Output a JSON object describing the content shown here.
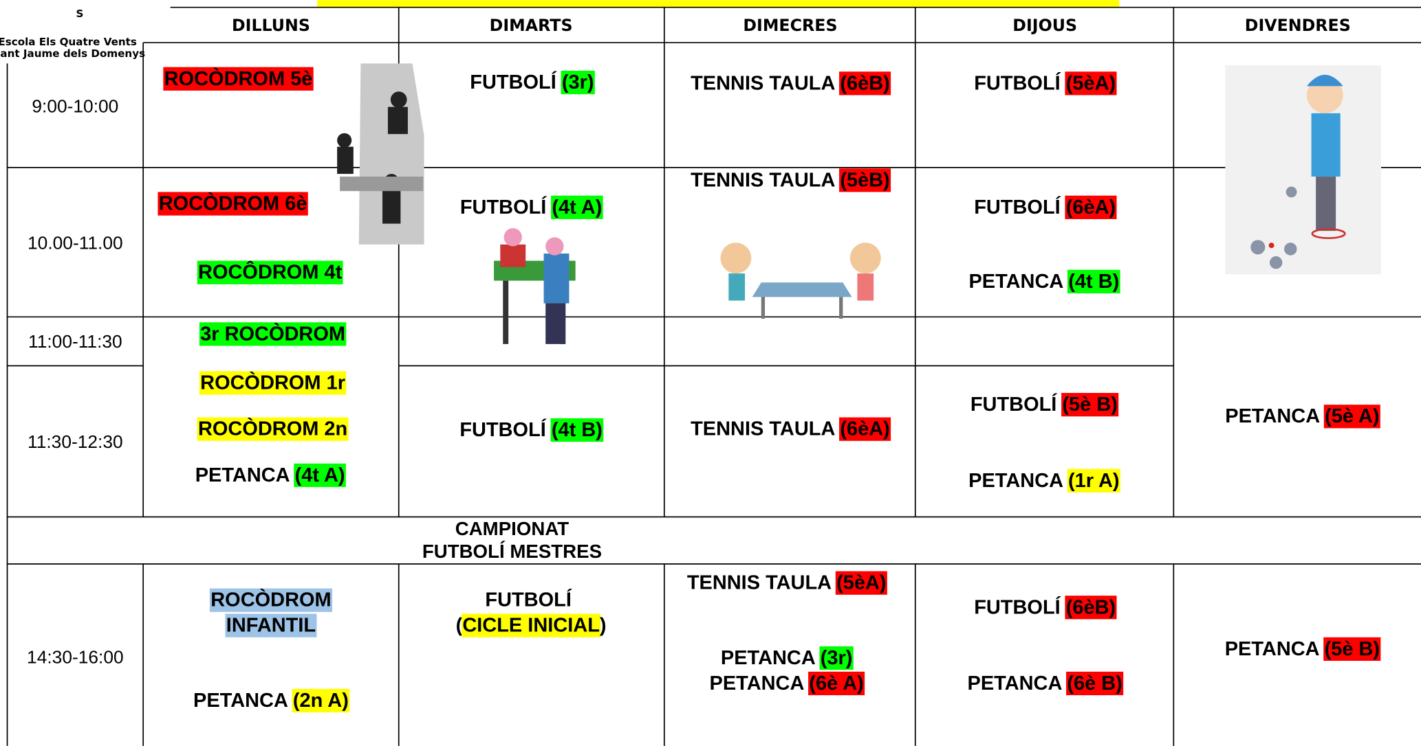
{
  "logo": {
    "letter": "S",
    "name": "Escola Els Quatre Vents",
    "town": "Sant Jaume dels Domenys"
  },
  "header": {
    "days": [
      "DILLUNS",
      "DIMARTS",
      "DIMECRES",
      "DIJOUS",
      "DIVENDRES"
    ]
  },
  "times": [
    "9:00-10:00",
    "10.00-11.00",
    "11:00-11:30",
    "11:30-12:30",
    "14:30-16:00"
  ],
  "banner": [
    "CAMPIONAT",
    "FUTBOLÍ MESTRES"
  ],
  "entries": [
    {
      "parts": [
        {
          "t": "ROCÒDROM 5è",
          "hl": "#ff0000"
        }
      ]
    },
    {
      "parts": [
        {
          "t": "FUTBOLÍ "
        },
        {
          "t": "(3r)",
          "hl": "#00ff00"
        }
      ]
    },
    {
      "parts": [
        {
          "t": "TENNIS TAULA "
        },
        {
          "t": "(6èB)",
          "hl": "#ff0000"
        }
      ]
    },
    {
      "parts": [
        {
          "t": "FUTBOLÍ "
        },
        {
          "t": "(5èA)",
          "hl": "#ff0000"
        }
      ]
    },
    {
      "parts": [
        {
          "t": "ROCÒDROM 6è",
          "hl": "#ff0000"
        }
      ]
    },
    {
      "parts": [
        {
          "t": "TENNIS TAULA "
        },
        {
          "t": "(5èB)",
          "hl": "#ff0000"
        }
      ]
    },
    {
      "parts": [
        {
          "t": "FUTBOLÍ "
        },
        {
          "t": "(4t A)",
          "hl": "#00ff00"
        }
      ]
    },
    {
      "parts": [
        {
          "t": "FUTBOLÍ "
        },
        {
          "t": "(6èA)",
          "hl": "#ff0000"
        }
      ]
    },
    {
      "parts": [
        {
          "t": "ROCÔDROM 4t",
          "hl": "#00ff00"
        }
      ]
    },
    {
      "parts": [
        {
          "t": "PETANCA "
        },
        {
          "t": "(4t B)",
          "hl": "#00ff00"
        }
      ]
    },
    {
      "parts": [
        {
          "t": "3r ROCÒDROM",
          "hl": "#00ff00"
        }
      ]
    },
    {
      "parts": [
        {
          "t": "ROCÒDROM 1r",
          "hl": "#ffff00"
        }
      ]
    },
    {
      "parts": [
        {
          "t": "ROCÒDROM 2n",
          "hl": "#ffff00"
        }
      ]
    },
    {
      "parts": [
        {
          "t": "PETANCA "
        },
        {
          "t": "(4t A)",
          "hl": "#00ff00"
        }
      ]
    },
    {
      "parts": [
        {
          "t": "FUTBOLÍ "
        },
        {
          "t": "(4t B)",
          "hl": "#00ff00"
        }
      ]
    },
    {
      "parts": [
        {
          "t": "TENNIS TAULA "
        },
        {
          "t": "(6èA)",
          "hl": "#ff0000"
        }
      ]
    },
    {
      "parts": [
        {
          "t": "FUTBOLÍ "
        },
        {
          "t": "(5è B)",
          "hl": "#ff0000"
        }
      ]
    },
    {
      "parts": [
        {
          "t": "PETANCA "
        },
        {
          "t": "(1r A)",
          "hl": "#ffff00"
        }
      ]
    },
    {
      "parts": [
        {
          "t": "PETANCA "
        },
        {
          "t": "(5è A)",
          "hl": "#ff0000"
        }
      ]
    },
    {
      "parts": [
        {
          "t": "ROCÒDROM",
          "hl": "#9dc3e6"
        }
      ]
    },
    {
      "parts": [
        {
          "t": "INFANTIL",
          "hl": "#9dc3e6"
        }
      ]
    },
    {
      "parts": [
        {
          "t": "PETANCA "
        },
        {
          "t": "(2n A)",
          "hl": "#ffff00"
        }
      ]
    },
    {
      "parts": [
        {
          "t": "FUTBOLÍ"
        }
      ]
    },
    {
      "parts": [
        {
          "t": "("
        },
        {
          "t": "CICLE INICIAL",
          "hl": "#ffff00"
        },
        {
          "t": ")"
        }
      ]
    },
    {
      "parts": [
        {
          "t": "TENNIS TAULA "
        },
        {
          "t": "(5èA)",
          "hl": "#ff0000"
        }
      ]
    },
    {
      "parts": [
        {
          "t": "PETANCA "
        },
        {
          "t": "(3r)",
          "hl": "#00ff00"
        }
      ]
    },
    {
      "parts": [
        {
          "t": "PETANCA "
        },
        {
          "t": "(6è A)",
          "hl": "#ff0000"
        }
      ]
    },
    {
      "parts": [
        {
          "t": "FUTBOLÍ "
        },
        {
          "t": "(6èB)",
          "hl": "#ff0000"
        }
      ]
    },
    {
      "parts": [
        {
          "t": "PETANCA "
        },
        {
          "t": "(6è B)",
          "hl": "#ff0000"
        }
      ]
    },
    {
      "parts": [
        {
          "t": "PETANCA "
        },
        {
          "t": "(5è B)",
          "hl": "#ff0000"
        }
      ]
    }
  ]
}
